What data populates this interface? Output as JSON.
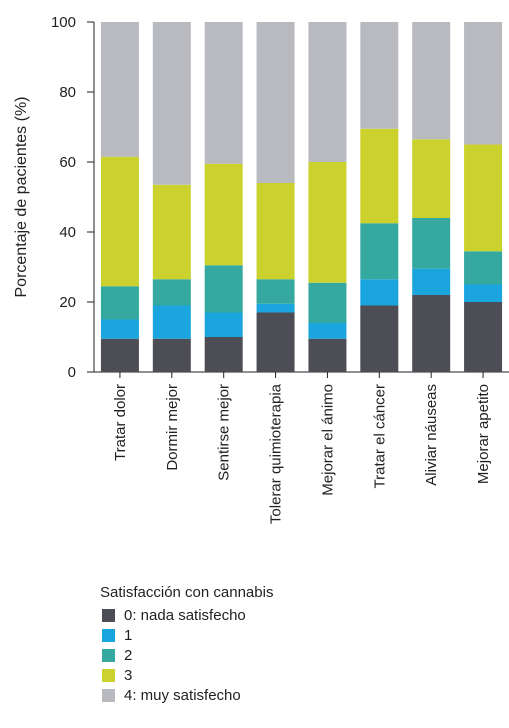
{
  "chart_data": {
    "type": "bar",
    "stacked": true,
    "ylabel": "Porcentaje de pacientes (%)",
    "xlabel": "",
    "ylim": [
      0,
      100
    ],
    "yticks": [
      0,
      20,
      40,
      60,
      80,
      100
    ],
    "categories": [
      "Tratar dolor",
      "Dormir mejor",
      "Sentirse mejor",
      "Tolerar quimioterapia",
      "Mejorar el ánimo",
      "Tratar el cáncer",
      "Aliviar náuseas",
      "Mejorar apetito"
    ],
    "series": [
      {
        "name": "0: nada satisfecho",
        "color": "#4d4d55",
        "values": [
          9.5,
          9.5,
          10,
          17,
          9.5,
          19,
          22,
          20
        ]
      },
      {
        "name": "1",
        "color": "#1aa5de",
        "values": [
          5.5,
          9.5,
          7,
          2.5,
          4.5,
          7.5,
          7.5,
          5
        ]
      },
      {
        "name": "2",
        "color": "#35a8a0",
        "values": [
          9.5,
          7.5,
          13.5,
          7,
          11.5,
          16,
          14.5,
          9.5
        ]
      },
      {
        "name": "3",
        "color": "#cbd22d",
        "values": [
          37,
          27,
          29,
          27.5,
          34.5,
          27,
          22.5,
          30.5
        ]
      },
      {
        "name": "4: muy satisfecho",
        "color": "#b9babf",
        "values": [
          38.5,
          46.5,
          40.5,
          46,
          40,
          30.5,
          33.5,
          35
        ]
      }
    ],
    "legend": {
      "title": "Satisfacción con cannabis",
      "placement": "bottom-left"
    },
    "grid": false
  }
}
